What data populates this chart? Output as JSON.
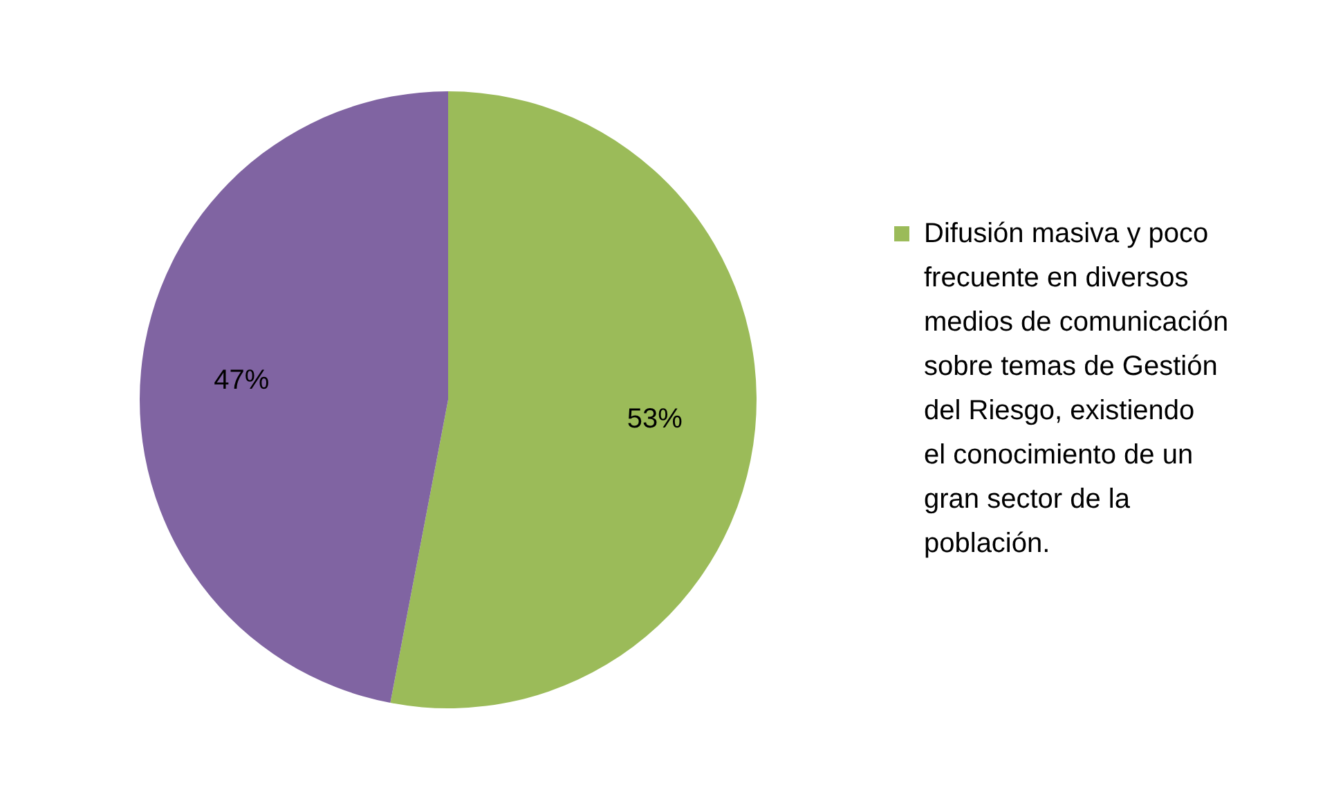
{
  "chart_data": {
    "type": "pie",
    "categories": [
      "Difusión masiva y poco frecuente en diversos medios de comunicación sobre temas de Gestión del Riesgo, existiendo el conocimiento de un gran sector de la población.",
      null
    ],
    "values": [
      53,
      47
    ],
    "colors": [
      "#9bbb59",
      "#8064a2"
    ],
    "value_labels": [
      "53%",
      "47%"
    ],
    "legend": "right"
  }
}
